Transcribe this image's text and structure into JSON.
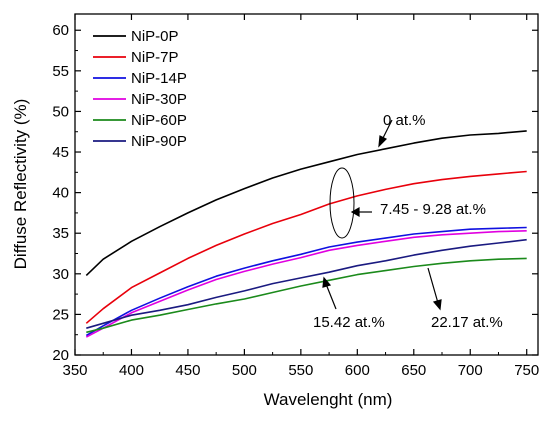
{
  "chart_data": {
    "type": "line",
    "xlabel": "Wavelenght (nm)",
    "ylabel": "Diffuse Reflectivity (%)",
    "xlim": [
      350,
      760
    ],
    "ylim": [
      20,
      62
    ],
    "xticks": [
      350,
      400,
      450,
      500,
      550,
      600,
      650,
      700,
      750
    ],
    "yticks": [
      20,
      25,
      30,
      35,
      40,
      45,
      50,
      55,
      60
    ],
    "legend_position": "top-left",
    "grid": false,
    "x": [
      360,
      375,
      400,
      425,
      450,
      475,
      500,
      525,
      550,
      575,
      600,
      625,
      650,
      675,
      700,
      725,
      750
    ],
    "series": [
      {
        "name": "NiP-0P",
        "color": "#000000",
        "values": [
          29.8,
          31.8,
          34.0,
          35.8,
          37.5,
          39.1,
          40.5,
          41.8,
          42.9,
          43.8,
          44.7,
          45.4,
          46.1,
          46.7,
          47.1,
          47.3,
          47.6
        ]
      },
      {
        "name": "NiP-7P",
        "color": "#e8000b",
        "values": [
          23.9,
          25.7,
          28.3,
          30.1,
          31.9,
          33.5,
          34.9,
          36.2,
          37.3,
          38.6,
          39.6,
          40.4,
          41.1,
          41.6,
          42.0,
          42.3,
          42.6
        ]
      },
      {
        "name": "NiP-14P",
        "color": "#1010e0",
        "values": [
          22.4,
          23.6,
          25.5,
          27.0,
          28.4,
          29.7,
          30.7,
          31.6,
          32.4,
          33.3,
          33.9,
          34.4,
          34.9,
          35.2,
          35.5,
          35.6,
          35.7
        ]
      },
      {
        "name": "NiP-30P",
        "color": "#e000e0",
        "values": [
          22.2,
          23.3,
          25.2,
          26.6,
          28.0,
          29.3,
          30.3,
          31.2,
          32.0,
          32.9,
          33.5,
          34.0,
          34.5,
          34.8,
          35.0,
          35.2,
          35.3
        ]
      },
      {
        "name": "NiP-60P",
        "color": "#1b8a1b",
        "values": [
          22.8,
          23.3,
          24.3,
          24.9,
          25.6,
          26.3,
          26.9,
          27.7,
          28.5,
          29.2,
          29.9,
          30.4,
          30.9,
          31.3,
          31.6,
          31.8,
          31.9
        ]
      },
      {
        "name": "NiP-90P",
        "color": "#1a1a80",
        "values": [
          23.3,
          23.9,
          24.9,
          25.5,
          26.2,
          27.1,
          27.9,
          28.8,
          29.5,
          30.2,
          31.0,
          31.6,
          32.3,
          32.9,
          33.4,
          33.8,
          34.2
        ]
      }
    ],
    "annotations": [
      {
        "text": "0 at.%"
      },
      {
        "text": "7.45 - 9.28 at.%"
      },
      {
        "text": "15.42 at.%"
      },
      {
        "text": "22.17 at.%"
      }
    ]
  }
}
